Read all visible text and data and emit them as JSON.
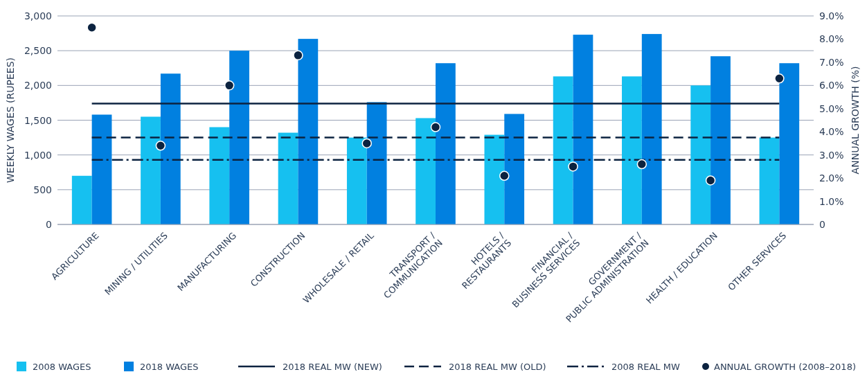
{
  "chart_data": {
    "type": "bar",
    "ylabel": "WEEKLY WAGES (RUPEES)",
    "y2label": "ANNUAL GROWTH (%)",
    "categories": [
      "AGRICULTURE",
      "MINING / UTILITIES",
      "MANUFACTURING",
      "CONSTRUCTION",
      "WHOLESALE / RETAIL",
      "TRANSPORT /\nCOMMUNICATION",
      "HOTELS /\nRESTAURANTS",
      "FINANCIAL /\nBUSINESS SERVICES",
      "GOVERNMENT /\nPUBLIC ADMINISTRATION",
      "HEALTH / EDUCATION",
      "OTHER SERVICES"
    ],
    "series": [
      {
        "name": "2008 WAGES",
        "color": "#16c0f0",
        "values": [
          700,
          1550,
          1400,
          1320,
          1250,
          1530,
          1290,
          2130,
          2130,
          2000,
          1250
        ]
      },
      {
        "name": "2018 WAGES",
        "color": "#0180e0",
        "values": [
          1580,
          2170,
          2500,
          2670,
          1760,
          2320,
          1590,
          2730,
          2740,
          2420,
          2320
        ]
      },
      {
        "name": "ANNUAL GROWTH (2008–2018)",
        "type": "scatter",
        "axis": "y2",
        "color": "#0c2340",
        "marker": "circle",
        "values": [
          8.5,
          3.4,
          6.0,
          7.3,
          3.5,
          4.2,
          2.1,
          2.5,
          2.6,
          1.9,
          6.3
        ]
      }
    ],
    "ref_lines": [
      {
        "axis": "y",
        "value": 1740,
        "label": "2018 REAL MW (NEW)",
        "color": "#0c2340",
        "line_style": "solid"
      },
      {
        "axis": "y",
        "value": 1250,
        "label": "2018 REAL MW (OLD)",
        "color": "#0c2340",
        "line_style": "dashed"
      },
      {
        "axis": "y",
        "value": 930,
        "label": "2008 REAL MW",
        "color": "#0c2340",
        "line_style": "dashdot"
      }
    ],
    "ylim": [
      0,
      3000
    ],
    "yticks": [
      {
        "value": 0,
        "label": "0"
      },
      {
        "value": 500,
        "label": "500"
      },
      {
        "value": 1000,
        "label": "1,000"
      },
      {
        "value": 1500,
        "label": "1,500"
      },
      {
        "value": 2000,
        "label": "2,000"
      },
      {
        "value": 2500,
        "label": "2,500"
      },
      {
        "value": 3000,
        "label": "3,000"
      }
    ],
    "y2lim": [
      0,
      9
    ],
    "y2ticks": [
      {
        "value": 0,
        "label": "0"
      },
      {
        "value": 1,
        "label": "1.0%"
      },
      {
        "value": 2,
        "label": "2.0%"
      },
      {
        "value": 3,
        "label": "3.0%"
      },
      {
        "value": 4,
        "label": "4.0%"
      },
      {
        "value": 5,
        "label": "5.0%"
      },
      {
        "value": 6,
        "label": "6.0%"
      },
      {
        "value": 7,
        "label": "7.0%"
      },
      {
        "value": 8,
        "label": "8.0%"
      },
      {
        "value": 9,
        "label": "9.0%"
      }
    ],
    "grid": "y",
    "legend": "bottom"
  }
}
